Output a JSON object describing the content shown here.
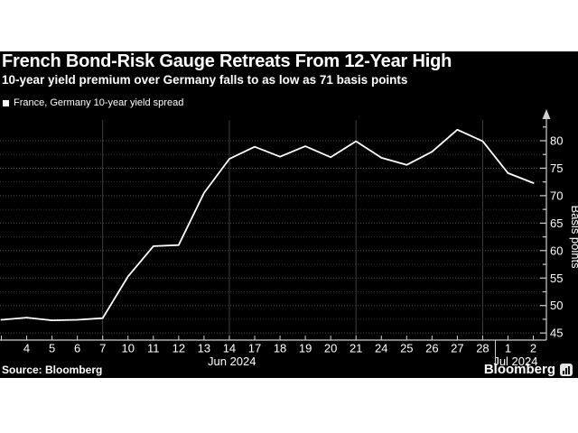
{
  "header": {
    "title": "French Bond-Risk Gauge Retreats From 12-Year High",
    "subtitle": "10-year yield premium over Germany falls to as low as 71 basis points"
  },
  "legend": {
    "label": "France, Germany 10-year yield spread",
    "marker_color": "#ffffff"
  },
  "footer": {
    "source": "Source: Bloomberg",
    "brand": "Bloomberg"
  },
  "colors": {
    "background": "#ffffff",
    "panel": "#000000",
    "text": "#ffffff",
    "axis": "#cfcfcf",
    "grid_major": "#4a4a4a",
    "grid_minor": "#353535",
    "grid_vertical": "#3d3d3d"
  },
  "chart_data": {
    "type": "line",
    "title": "French Bond-Risk Gauge Retreats From 12-Year High",
    "subtitle": "10-year yield premium over Germany falls to as low as 71 basis points",
    "ylabel": "Basis points",
    "xlabel": "",
    "ylim": [
      43.5,
      84
    ],
    "y_ticks": [
      45,
      50,
      55,
      60,
      65,
      70,
      75,
      80
    ],
    "y_major_step": 5,
    "y_minor_step": 2.5,
    "y_min_grid": 45,
    "y_max_grid": 80,
    "y_tick_top_extra": 82.5,
    "grid": "dotted-horizontal",
    "legend_position": "top-left",
    "categories": [
      "Jun 3",
      "Jun 4",
      "Jun 5",
      "Jun 6",
      "Jun 7",
      "Jun 10",
      "Jun 11",
      "Jun 12",
      "Jun 13",
      "Jun 14",
      "Jun 17",
      "Jun 18",
      "Jun 19",
      "Jun 20",
      "Jun 21",
      "Jun 24",
      "Jun 25",
      "Jun 26",
      "Jun 27",
      "Jun 28",
      "Jul 1",
      "Jul 2"
    ],
    "x_tick_labels": [
      "",
      "4",
      "5",
      "6",
      "7",
      "10",
      "11",
      "12",
      "13",
      "14",
      "17",
      "18",
      "19",
      "20",
      "21",
      "24",
      "25",
      "26",
      "27",
      "28",
      "1",
      "2"
    ],
    "series": [
      {
        "name": "France, Germany 10-year yield spread",
        "color": "#ffffff",
        "values": [
          47.4,
          47.8,
          47.3,
          47.4,
          47.7,
          55.3,
          60.8,
          61.0,
          70.5,
          76.7,
          78.9,
          77.1,
          79.0,
          77.0,
          79.9,
          76.9,
          75.6,
          78.0,
          82.0,
          79.9,
          74.1,
          72.3
        ]
      }
    ],
    "vertical_gridline_indices": [
      4,
      9,
      14,
      19
    ],
    "month_separator_after_index": 19,
    "months": [
      {
        "text": "Jun 2024",
        "center_index": 9.1
      },
      {
        "text": "Jul 2024",
        "center_index": 20.3
      }
    ]
  }
}
